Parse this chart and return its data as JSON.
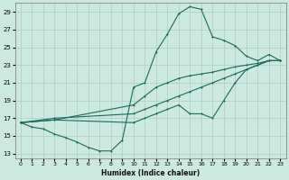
{
  "xlabel": "Humidex (Indice chaleur)",
  "bg_color": "#cce8df",
  "grid_color": "#aacfc5",
  "line_color": "#1a6b5a",
  "xlim": [
    -0.5,
    23.5
  ],
  "ylim": [
    12.5,
    30
  ],
  "xticks": [
    0,
    1,
    2,
    3,
    4,
    5,
    6,
    7,
    8,
    9,
    10,
    11,
    12,
    13,
    14,
    15,
    16,
    17,
    18,
    19,
    20,
    21,
    22,
    23
  ],
  "yticks": [
    13,
    15,
    17,
    19,
    21,
    23,
    25,
    27,
    29
  ],
  "line1_x": [
    0,
    1,
    2,
    3,
    4,
    5,
    6,
    7,
    8,
    9,
    10,
    11,
    12,
    13,
    14,
    15,
    16,
    17,
    18,
    19,
    20,
    21,
    22,
    23
  ],
  "line1_y": [
    16.5,
    16.0,
    15.8,
    15.2,
    14.8,
    14.3,
    13.7,
    13.3,
    13.3,
    14.5,
    20.5,
    21.0,
    24.5,
    26.5,
    28.8,
    29.6,
    29.3,
    26.2,
    25.8,
    25.2,
    24.0,
    23.5,
    24.2,
    23.5
  ],
  "line2_x": [
    0,
    3,
    10,
    11,
    12,
    13,
    14,
    15,
    16,
    17,
    18,
    19,
    20,
    21,
    22,
    23
  ],
  "line2_y": [
    16.5,
    16.8,
    18.5,
    19.5,
    20.5,
    21.0,
    21.5,
    21.8,
    22.0,
    22.2,
    22.5,
    22.8,
    23.0,
    23.2,
    23.5,
    23.5
  ],
  "line3_x": [
    0,
    3,
    10,
    11,
    12,
    13,
    14,
    15,
    16,
    17,
    18,
    19,
    20,
    21,
    22,
    23
  ],
  "line3_y": [
    16.5,
    17.0,
    17.5,
    18.0,
    18.5,
    19.0,
    19.5,
    20.0,
    20.5,
    21.0,
    21.5,
    22.0,
    22.5,
    23.0,
    23.5,
    23.5
  ],
  "line4_x": [
    0,
    3,
    10,
    11,
    12,
    13,
    14,
    15,
    16,
    17,
    18,
    19,
    20,
    21,
    22,
    23
  ],
  "line4_y": [
    16.5,
    16.8,
    16.5,
    17.0,
    17.5,
    18.0,
    18.5,
    17.5,
    17.5,
    17.0,
    19.0,
    21.0,
    22.5,
    23.0,
    23.5,
    23.5
  ]
}
